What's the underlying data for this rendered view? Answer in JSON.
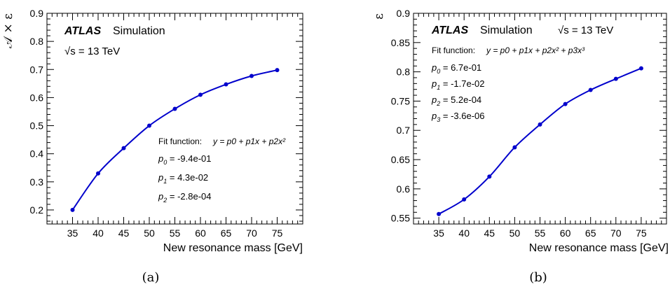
{
  "chart_data": [
    {
      "type": "scatter",
      "panel_label": "(a)",
      "ylabel": "𝒜 × ε",
      "xlabel": "New resonance mass [GeV]",
      "xlim": [
        30,
        80
      ],
      "ylim": [
        0.15,
        0.9
      ],
      "x_ticks": [
        35,
        40,
        45,
        50,
        55,
        60,
        65,
        70,
        75
      ],
      "y_ticks": [
        0.2,
        0.3,
        0.4,
        0.5,
        0.6,
        0.7,
        0.8,
        0.9
      ],
      "y_tick_labels": [
        "0.2",
        "0.3",
        "0.4",
        "0.5",
        "0.6",
        "0.7",
        "0.8",
        "0.9"
      ],
      "x": [
        35,
        40,
        45,
        50,
        55,
        60,
        65,
        70,
        75
      ],
      "y": [
        0.2,
        0.33,
        0.42,
        0.5,
        0.56,
        0.61,
        0.647,
        0.677,
        0.698
      ],
      "fit": {
        "label": "Fit function:",
        "formula": "y = p0 + p1x + p2x²",
        "params": [
          {
            "name": "p0",
            "value": "-9.4e-01"
          },
          {
            "name": "p1",
            "value": "4.3e-02"
          },
          {
            "name": "p2",
            "value": "-2.8e-04"
          }
        ]
      },
      "atlas": "ATLAS",
      "simulation": "Simulation",
      "energy": "√s = 13 TeV",
      "colors": {
        "points": "#0000cc",
        "curve": "#0000cc"
      }
    },
    {
      "type": "scatter",
      "panel_label": "(b)",
      "ylabel": "ε",
      "xlabel": "New resonance mass [GeV]",
      "xlim": [
        30,
        80
      ],
      "ylim": [
        0.54,
        0.9
      ],
      "x_ticks": [
        35,
        40,
        45,
        50,
        55,
        60,
        65,
        70,
        75
      ],
      "y_ticks": [
        0.55,
        0.6,
        0.65,
        0.7,
        0.75,
        0.8,
        0.85,
        0.9
      ],
      "y_tick_labels": [
        "0.55",
        "0.6",
        "0.65",
        "0.7",
        "0.75",
        "0.8",
        "0.85",
        "0.9"
      ],
      "x": [
        35,
        40,
        45,
        50,
        55,
        60,
        65,
        70,
        75
      ],
      "y": [
        0.557,
        0.582,
        0.621,
        0.671,
        0.71,
        0.745,
        0.769,
        0.788,
        0.806
      ],
      "fit": {
        "label": "Fit function:",
        "formula": "y = p0 + p1x + p2x² + p3x³",
        "params": [
          {
            "name": "p0",
            "value": "6.7e-01"
          },
          {
            "name": "p1",
            "value": "-1.7e-02"
          },
          {
            "name": "p2",
            "value": "5.2e-04"
          },
          {
            "name": "p3",
            "value": "-3.6e-06"
          }
        ]
      },
      "atlas": "ATLAS",
      "simulation": "Simulation",
      "energy": "√s = 13 TeV",
      "colors": {
        "points": "#0000cc",
        "curve": "#0000cc"
      }
    }
  ]
}
